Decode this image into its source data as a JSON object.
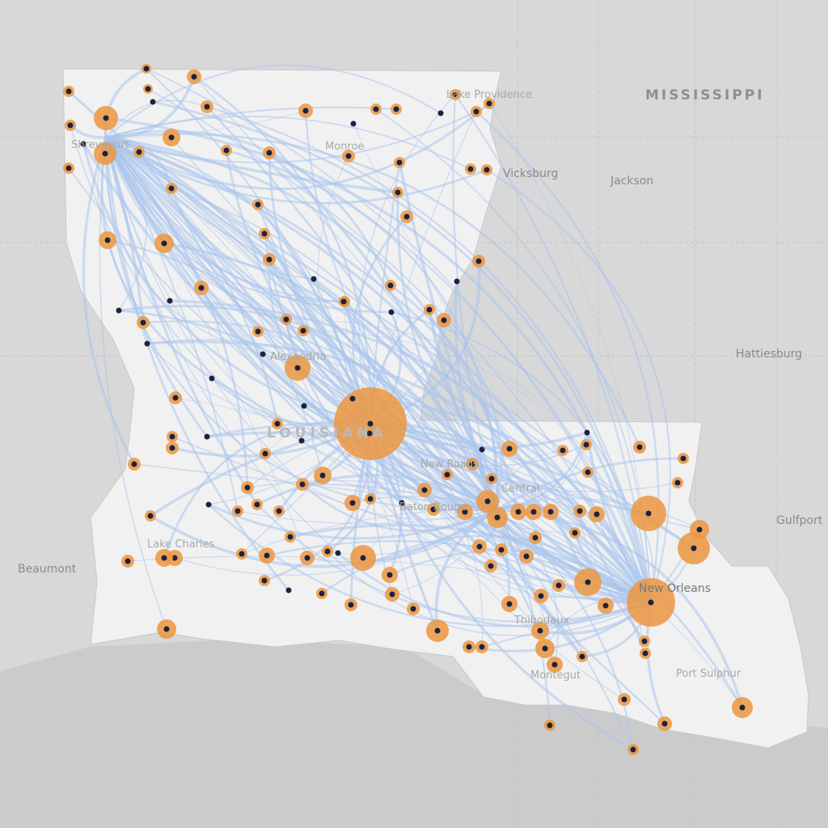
{
  "map": {
    "colors": {
      "land_outside": "#d8d8d8",
      "state_fill": "#f1f1f1",
      "water": "#cbcbcb",
      "flow_line": "#a9c4ec",
      "node_halo": "#ec9740",
      "node_dot": "#1c2340"
    },
    "labels": {
      "mississippi": "MISSISSIPPI",
      "louisiana": "LOUISIANA",
      "jackson": "Jackson",
      "vicksburg": "Vicksburg",
      "hattiesburg": "Hattiesburg",
      "gulfport": "Gulfport",
      "beaumont": "Beaumont",
      "lake_providence": "Lake Providence",
      "shreveport": "Shreveport",
      "monroe": "Monroe",
      "alexandria": "Alexandria",
      "new_roads": "New Roads",
      "baton_rouge": "Baton Rouge",
      "central": "Central",
      "lake_charles": "Lake Charles",
      "new_orleans": "New Orleans",
      "thibodaux": "Thibodaux",
      "montegut": "Montegut",
      "port_sulphur": "Port Sulphur"
    }
  }
}
